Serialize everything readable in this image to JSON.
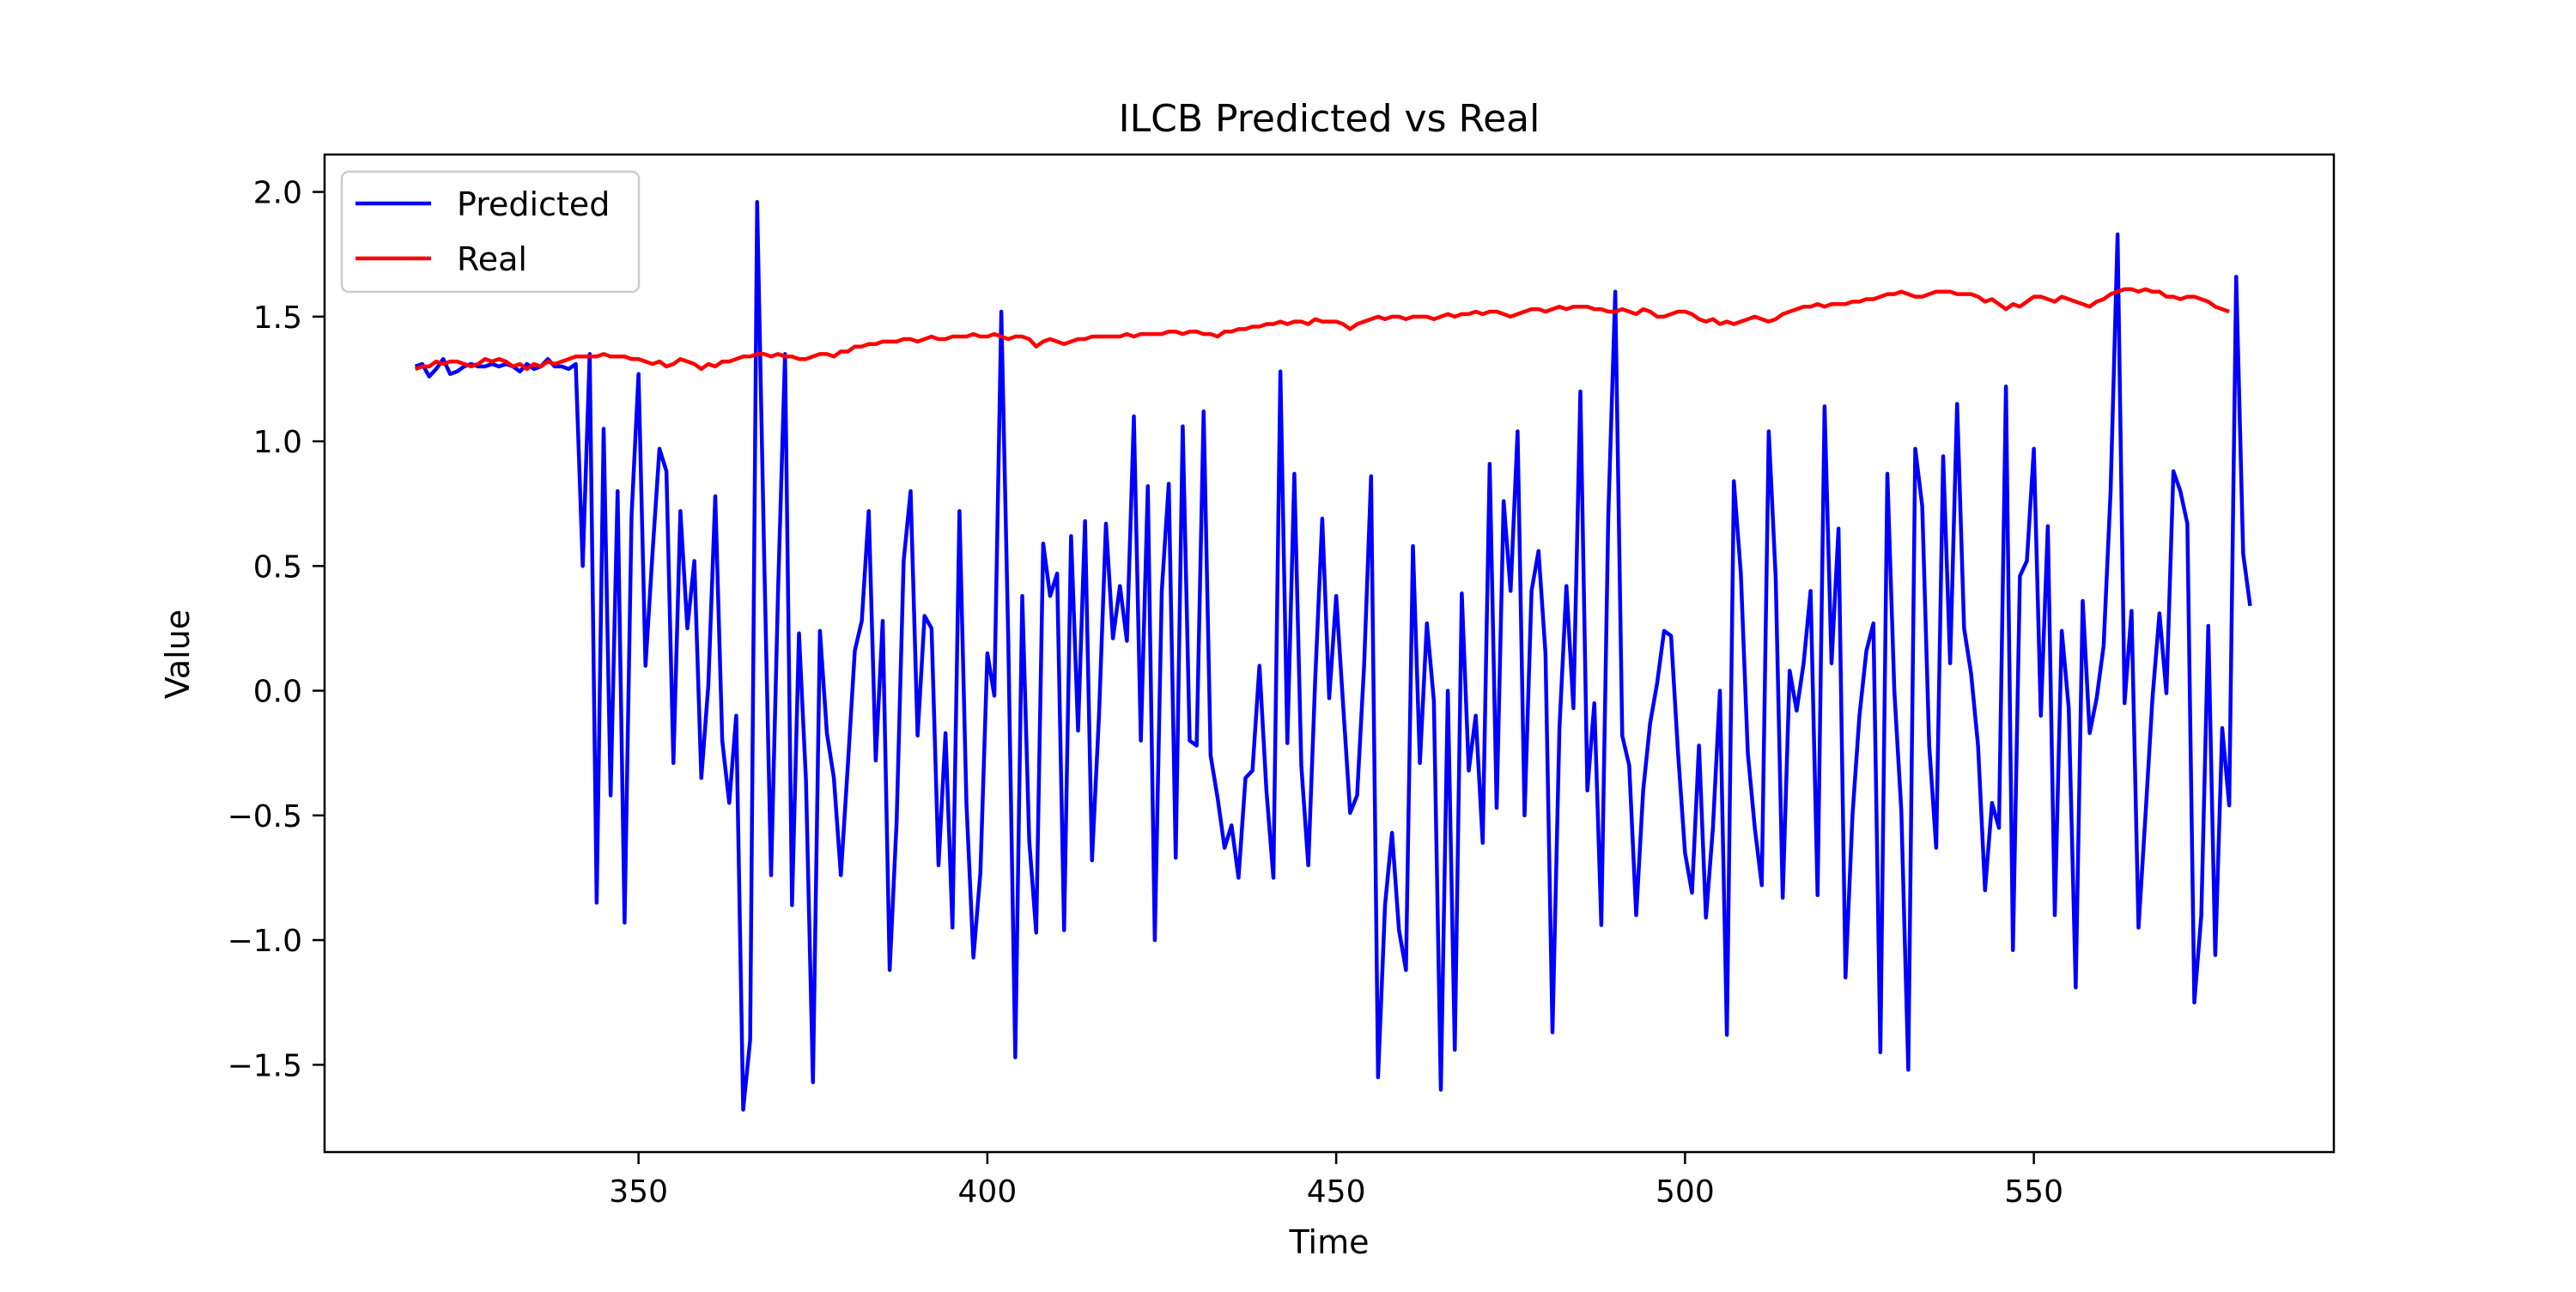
{
  "chart_data": {
    "type": "line",
    "title": "ILCB Predicted vs Real",
    "xlabel": "Time",
    "ylabel": "Value",
    "xlim": [
      305,
      593
    ],
    "ylim": [
      -1.85,
      2.15
    ],
    "x_ticks": [
      350,
      400,
      450,
      500,
      550
    ],
    "y_ticks": [
      -1.5,
      -1.0,
      -0.5,
      0.0,
      0.5,
      1.0,
      1.5,
      2.0
    ],
    "x_tick_labels": [
      "350",
      "400",
      "450",
      "500",
      "550"
    ],
    "y_tick_labels": [
      "−1.5",
      "−1.0",
      "−0.5",
      "0.0",
      "0.5",
      "1.0",
      "1.5",
      "2.0"
    ],
    "grid": false,
    "legend_position": "upper-left",
    "series": [
      {
        "name": "Predicted",
        "color": "#0000ff",
        "x_start": 318,
        "step": 1,
        "values": [
          1.3,
          1.31,
          1.26,
          1.29,
          1.33,
          1.27,
          1.28,
          1.3,
          1.31,
          1.3,
          1.3,
          1.31,
          1.3,
          1.31,
          1.3,
          1.28,
          1.31,
          1.29,
          1.3,
          1.33,
          1.3,
          1.3,
          1.29,
          1.31,
          0.5,
          1.35,
          -0.85,
          1.05,
          -0.42,
          0.8,
          -0.93,
          0.7,
          1.27,
          0.1,
          0.55,
          0.97,
          0.88,
          -0.29,
          0.72,
          0.25,
          0.52,
          -0.35,
          0.02,
          0.78,
          -0.2,
          -0.45,
          -0.1,
          -1.68,
          -1.4,
          1.96,
          0.55,
          -0.74,
          0.4,
          1.35,
          -0.86,
          0.23,
          -0.36,
          -1.57,
          0.24,
          -0.17,
          -0.35,
          -0.74,
          -0.3,
          0.16,
          0.28,
          0.72,
          -0.28,
          0.28,
          -1.12,
          -0.52,
          0.52,
          0.8,
          -0.18,
          0.3,
          0.25,
          -0.7,
          -0.17,
          -0.95,
          0.72,
          -0.45,
          -1.07,
          -0.73,
          0.15,
          -0.02,
          1.52,
          0.2,
          -1.47,
          0.38,
          -0.6,
          -0.97,
          0.59,
          0.38,
          0.47,
          -0.96,
          0.62,
          -0.16,
          0.68,
          -0.68,
          -0.1,
          0.67,
          0.21,
          0.42,
          0.2,
          1.1,
          -0.2,
          0.82,
          -1.0,
          0.4,
          0.83,
          -0.67,
          1.06,
          -0.2,
          -0.22,
          1.12,
          -0.26,
          -0.43,
          -0.63,
          -0.54,
          -0.75,
          -0.35,
          -0.32,
          0.1,
          -0.4,
          -0.75,
          1.28,
          -0.21,
          0.87,
          -0.3,
          -0.7,
          0.05,
          0.69,
          -0.03,
          0.38,
          -0.06,
          -0.49,
          -0.42,
          0.1,
          0.86,
          -1.55,
          -0.86,
          -0.57,
          -0.96,
          -1.12,
          0.58,
          -0.29,
          0.27,
          -0.04,
          -1.6,
          0.0,
          -1.44,
          0.39,
          -0.32,
          -0.1,
          -0.61,
          0.91,
          -0.47,
          0.76,
          0.4,
          1.04,
          -0.5,
          0.4,
          0.56,
          0.15,
          -1.37,
          -0.15,
          0.42,
          -0.07,
          1.2,
          -0.4,
          -0.05,
          -0.94,
          0.7,
          1.6,
          -0.18,
          -0.3,
          -0.9,
          -0.4,
          -0.13,
          0.03,
          0.24,
          0.22,
          -0.25,
          -0.65,
          -0.81,
          -0.22,
          -0.91,
          -0.55,
          0.0,
          -1.38,
          0.84,
          0.47,
          -0.25,
          -0.55,
          -0.78,
          1.04,
          0.45,
          -0.83,
          0.08,
          -0.08,
          0.11,
          0.4,
          -0.82,
          1.14,
          0.11,
          0.65,
          -1.15,
          -0.5,
          -0.1,
          0.16,
          0.27,
          -1.45,
          0.87,
          0.0,
          -0.48,
          -1.52,
          0.97,
          0.74,
          -0.22,
          -0.63,
          0.94,
          0.11,
          1.15,
          0.25,
          0.07,
          -0.22,
          -0.8,
          -0.45,
          -0.55,
          1.22,
          -1.04,
          0.46,
          0.52,
          0.97,
          -0.1,
          0.66,
          -0.9,
          0.24,
          -0.07,
          -1.19,
          0.36,
          -0.17,
          -0.03,
          0.18,
          0.8,
          1.83,
          -0.05,
          0.32,
          -0.95,
          -0.5,
          -0.03,
          0.31,
          -0.01,
          0.88,
          0.8,
          0.67,
          -1.25,
          -0.9,
          0.26,
          -1.06,
          -0.15,
          -0.46,
          1.66,
          0.55,
          0.34
        ]
      },
      {
        "name": "Real",
        "color": "#ff0000",
        "x_start": 318,
        "step": 1,
        "values": [
          1.29,
          1.3,
          1.3,
          1.32,
          1.31,
          1.32,
          1.32,
          1.31,
          1.3,
          1.31,
          1.33,
          1.32,
          1.33,
          1.32,
          1.3,
          1.31,
          1.29,
          1.31,
          1.3,
          1.32,
          1.31,
          1.32,
          1.33,
          1.34,
          1.34,
          1.34,
          1.34,
          1.35,
          1.34,
          1.34,
          1.34,
          1.33,
          1.33,
          1.32,
          1.31,
          1.32,
          1.3,
          1.31,
          1.33,
          1.32,
          1.31,
          1.29,
          1.31,
          1.3,
          1.32,
          1.32,
          1.33,
          1.34,
          1.34,
          1.35,
          1.35,
          1.34,
          1.35,
          1.34,
          1.34,
          1.33,
          1.33,
          1.34,
          1.35,
          1.35,
          1.34,
          1.36,
          1.36,
          1.38,
          1.38,
          1.39,
          1.39,
          1.4,
          1.4,
          1.4,
          1.41,
          1.41,
          1.4,
          1.41,
          1.42,
          1.41,
          1.41,
          1.42,
          1.42,
          1.42,
          1.43,
          1.42,
          1.42,
          1.43,
          1.42,
          1.41,
          1.42,
          1.42,
          1.41,
          1.38,
          1.4,
          1.41,
          1.4,
          1.39,
          1.4,
          1.41,
          1.41,
          1.42,
          1.42,
          1.42,
          1.42,
          1.42,
          1.43,
          1.42,
          1.43,
          1.43,
          1.43,
          1.43,
          1.44,
          1.44,
          1.43,
          1.44,
          1.44,
          1.43,
          1.43,
          1.42,
          1.44,
          1.44,
          1.45,
          1.45,
          1.46,
          1.46,
          1.47,
          1.47,
          1.48,
          1.47,
          1.48,
          1.48,
          1.47,
          1.49,
          1.48,
          1.48,
          1.48,
          1.47,
          1.45,
          1.47,
          1.48,
          1.49,
          1.5,
          1.49,
          1.5,
          1.5,
          1.49,
          1.5,
          1.5,
          1.5,
          1.49,
          1.5,
          1.51,
          1.5,
          1.51,
          1.51,
          1.52,
          1.51,
          1.52,
          1.52,
          1.51,
          1.5,
          1.51,
          1.52,
          1.53,
          1.53,
          1.52,
          1.53,
          1.54,
          1.53,
          1.54,
          1.54,
          1.54,
          1.53,
          1.53,
          1.52,
          1.52,
          1.53,
          1.52,
          1.51,
          1.53,
          1.52,
          1.5,
          1.5,
          1.51,
          1.52,
          1.52,
          1.51,
          1.49,
          1.48,
          1.49,
          1.47,
          1.48,
          1.47,
          1.48,
          1.49,
          1.5,
          1.49,
          1.48,
          1.49,
          1.51,
          1.52,
          1.53,
          1.54,
          1.54,
          1.55,
          1.54,
          1.55,
          1.55,
          1.55,
          1.56,
          1.56,
          1.57,
          1.57,
          1.58,
          1.59,
          1.59,
          1.6,
          1.59,
          1.58,
          1.58,
          1.59,
          1.6,
          1.6,
          1.6,
          1.59,
          1.59,
          1.59,
          1.58,
          1.56,
          1.57,
          1.55,
          1.53,
          1.55,
          1.54,
          1.56,
          1.58,
          1.58,
          1.57,
          1.56,
          1.58,
          1.57,
          1.56,
          1.55,
          1.54,
          1.56,
          1.57,
          1.59,
          1.6,
          1.61,
          1.61,
          1.6,
          1.61,
          1.6,
          1.6,
          1.58,
          1.58,
          1.57,
          1.58,
          1.58,
          1.57,
          1.56,
          1.54,
          1.53,
          1.52
        ]
      }
    ]
  }
}
